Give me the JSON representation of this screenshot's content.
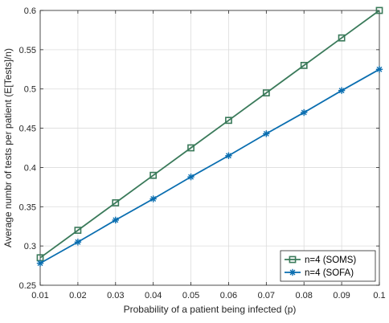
{
  "chart_data": {
    "type": "line",
    "title": "",
    "xlabel": "Probability of a patient being infected (p)",
    "ylabel": "Average numbr of tests per patient (E[Tests]/n)",
    "x": [
      0.01,
      0.02,
      0.03,
      0.04,
      0.05,
      0.06,
      0.07,
      0.08,
      0.09,
      0.1
    ],
    "xlim": [
      0.01,
      0.1
    ],
    "ylim": [
      0.25,
      0.6
    ],
    "x_ticks": [
      "0.01",
      "0.02",
      "0.03",
      "0.04",
      "0.05",
      "0.06",
      "0.07",
      "0.08",
      "0.09",
      "0.1"
    ],
    "y_ticks": [
      "0.25",
      "0.3",
      "0.35",
      "0.4",
      "0.45",
      "0.5",
      "0.55",
      "0.6"
    ],
    "grid": true,
    "legend_position": "bottom-right",
    "series": [
      {
        "name": "n=4 (SOMS)",
        "marker": "square",
        "color": "#3a7a5a",
        "values": [
          0.285,
          0.32,
          0.355,
          0.39,
          0.425,
          0.46,
          0.495,
          0.53,
          0.565,
          0.6
        ]
      },
      {
        "name": "n=4 (SOFA)",
        "marker": "asterisk",
        "color": "#0a6eb0",
        "values": [
          0.278,
          0.305,
          0.333,
          0.36,
          0.388,
          0.415,
          0.443,
          0.47,
          0.498,
          0.525
        ]
      }
    ]
  }
}
